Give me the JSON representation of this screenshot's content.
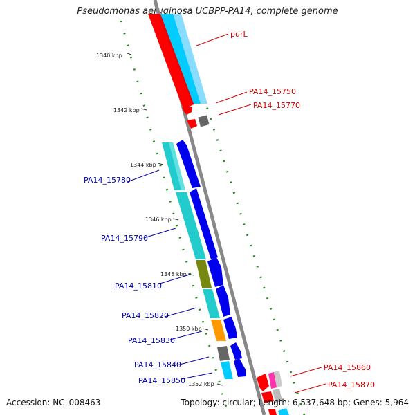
{
  "title": "Pseudomonas aeruginosa UCBPP-PA14, complete genome",
  "footer": {
    "accession": "Accession: NC_008463",
    "topology": "Topology: circular; Length: 6,537,648 bp; Genes: 5,964"
  },
  "ticks": [
    "1340 kbp",
    "1342 kbp",
    "1344 kbp",
    "1346 kbp",
    "1348 kbp",
    "1350 kbp",
    "1352 kbp"
  ],
  "genes_right": [
    {
      "label": "purL",
      "color": "#cc0000"
    },
    {
      "label": "PA14_15750",
      "color": "#cc0000"
    },
    {
      "label": "PA14_15770",
      "color": "#cc0000"
    },
    {
      "label": "PA14_15860",
      "color": "#cc0000"
    },
    {
      "label": "PA14_15870",
      "color": "#cc0000"
    }
  ],
  "genes_left": [
    {
      "label": "PA14_15780",
      "color": "#0000aa"
    },
    {
      "label": "PA14_15790",
      "color": "#0000aa"
    },
    {
      "label": "PA14_15810",
      "color": "#0000aa"
    },
    {
      "label": "PA14_15820",
      "color": "#0000aa"
    },
    {
      "label": "PA14_15830",
      "color": "#0000aa"
    },
    {
      "label": "PA14_15840",
      "color": "#0000aa"
    },
    {
      "label": "PA14_15850",
      "color": "#0000aa"
    }
  ],
  "colors": {
    "forward_red": "#ff0000",
    "cyan": "#00ccff",
    "teal": "#22cccc",
    "blue": "#0000ee",
    "olive": "#778811",
    "orange": "#ff9900",
    "gray": "#666666",
    "magenta": "#ff33aa",
    "backbone": "#888888",
    "dots": "#228822"
  }
}
